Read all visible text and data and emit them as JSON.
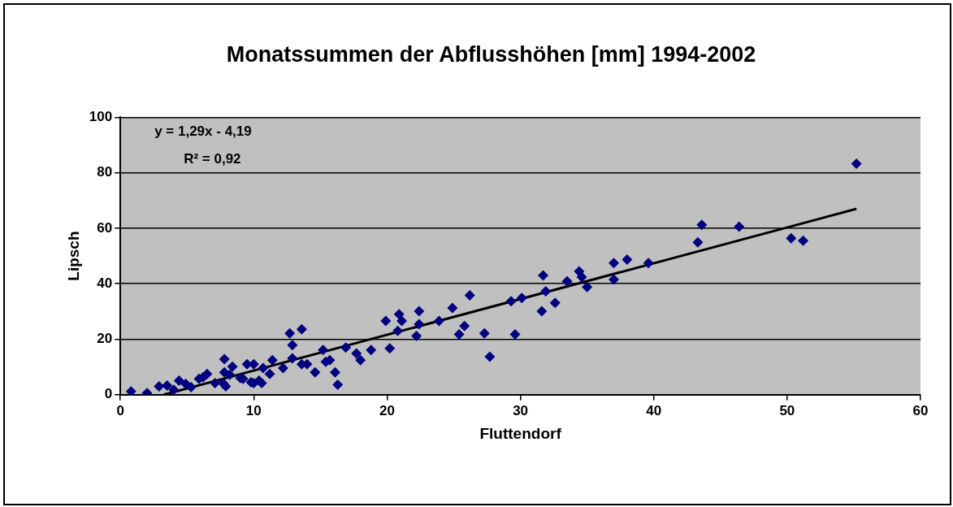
{
  "chart_data": {
    "type": "scatter",
    "title": "Monatssummen der Abflusshöhen [mm] 1994-2002",
    "xlabel": "Fluttendorf",
    "ylabel": "Lipsch",
    "annotations": [
      "y = 1,29x - 4,19",
      "R² = 0,92"
    ],
    "xlim": [
      0,
      60
    ],
    "xticks": [
      0,
      10,
      20,
      30,
      40,
      50,
      60
    ],
    "ylim": [
      0,
      100
    ],
    "yticks": [
      0,
      20,
      40,
      60,
      80,
      100
    ],
    "grid": "y",
    "legend": false,
    "series": [
      {
        "color": "#000080",
        "marker": "diamond",
        "x": [
          0.8,
          2.0,
          2.9,
          3.5,
          4.0,
          4.4,
          4.9,
          5.3,
          5.9,
          6.2,
          6.5,
          7.1,
          7.7,
          7.8,
          7.8,
          7.9,
          8.2,
          8.4,
          9.0,
          9.2,
          9.5,
          9.8,
          10.0,
          10.0,
          10.4,
          10.6,
          10.7,
          11.2,
          11.4,
          12.2,
          12.7,
          12.9,
          12.9,
          13.6,
          13.6,
          14.0,
          14.6,
          15.2,
          15.4,
          15.7,
          16.1,
          16.3,
          16.9,
          17.7,
          18.0,
          18.8,
          19.9,
          20.2,
          20.8,
          20.9,
          21.1,
          22.2,
          22.4,
          22.4,
          23.9,
          24.9,
          25.4,
          25.8,
          26.2,
          27.3,
          27.7,
          29.3,
          29.6,
          30.1,
          31.6,
          31.7,
          31.9,
          32.6,
          33.5,
          34.4,
          34.6,
          35.0,
          37.0,
          37.0,
          38.0,
          39.6,
          43.3,
          43.6,
          46.4,
          50.3,
          51.2,
          55.2
        ],
        "values": [
          1.2,
          0.6,
          3.0,
          3.3,
          1.8,
          5.1,
          3.9,
          2.7,
          5.7,
          6.3,
          7.5,
          4.2,
          4.2,
          12.8,
          8.1,
          3.0,
          7.2,
          10.1,
          6.0,
          5.7,
          11.0,
          4.5,
          11.0,
          4.2,
          5.1,
          4.2,
          9.6,
          7.5,
          12.5,
          9.6,
          22.1,
          17.9,
          13.1,
          23.6,
          11.0,
          11.0,
          8.1,
          16.1,
          11.9,
          12.5,
          8.1,
          3.6,
          17.0,
          14.9,
          12.5,
          16.1,
          26.6,
          16.7,
          23.0,
          29.0,
          26.6,
          21.2,
          30.1,
          25.4,
          26.6,
          31.3,
          21.8,
          24.8,
          35.8,
          22.1,
          13.7,
          33.7,
          21.8,
          34.9,
          30.1,
          43.0,
          37.3,
          33.1,
          40.9,
          44.5,
          42.4,
          38.8,
          47.5,
          41.5,
          48.7,
          47.5,
          54.9,
          61.2,
          60.6,
          56.4,
          55.5,
          83.3
        ]
      },
      {
        "type": "line",
        "marker": "none",
        "color": "#000000",
        "x": [
          3.25,
          55.2
        ],
        "values": [
          0,
          67.0
        ]
      }
    ]
  }
}
